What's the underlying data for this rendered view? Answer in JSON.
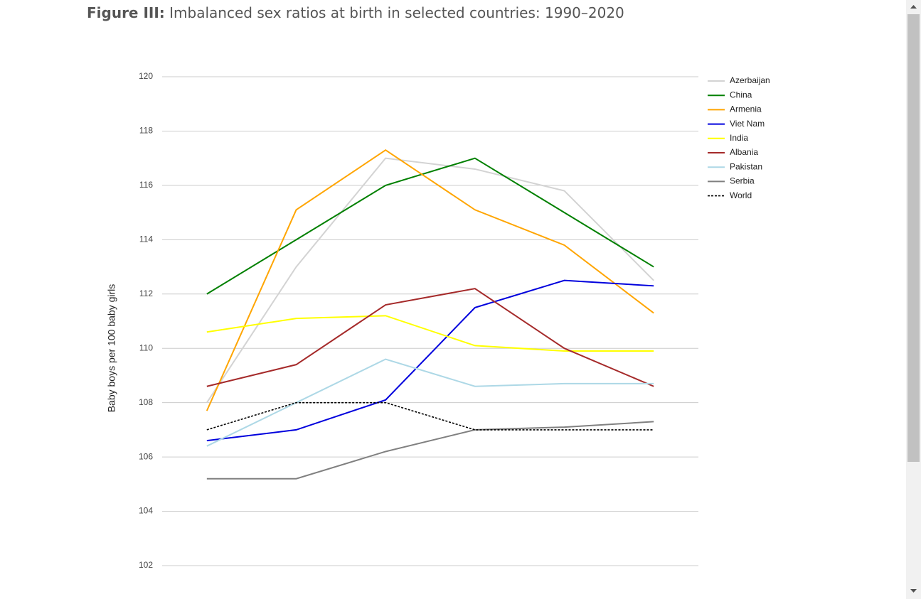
{
  "chart_data": {
    "type": "line",
    "title_label": "Figure III:",
    "title": "Imbalanced sex ratios at birth in selected countries: 1990–2020",
    "ylabel": "Baby boys per 100 baby girls",
    "categories": [
      null,
      null,
      null,
      null,
      null,
      null
    ],
    "ylim": [
      102,
      120
    ],
    "yticks": [
      102,
      104,
      106,
      108,
      110,
      112,
      114,
      116,
      118,
      120
    ],
    "grid": true,
    "legend": "right",
    "series": [
      {
        "name": "Azerbaijan",
        "color": "#d3d3d3",
        "values": [
          108.0,
          113.0,
          117.0,
          116.6,
          115.8,
          112.5
        ]
      },
      {
        "name": "China",
        "color": "#008000",
        "values": [
          112.0,
          114.0,
          116.0,
          117.0,
          115.0,
          113.0
        ]
      },
      {
        "name": "Armenia",
        "color": "#ffa500",
        "values": [
          107.7,
          115.1,
          117.3,
          115.1,
          113.8,
          111.3
        ]
      },
      {
        "name": "Viet Nam",
        "color": "#0000dd",
        "values": [
          106.6,
          107.0,
          108.1,
          111.5,
          112.5,
          112.3
        ]
      },
      {
        "name": "India",
        "color": "#ffff00",
        "values": [
          110.6,
          111.1,
          111.2,
          110.1,
          109.9,
          109.9
        ]
      },
      {
        "name": "Albania",
        "color": "#a52a2a",
        "values": [
          108.6,
          109.4,
          111.6,
          112.2,
          110.0,
          108.6
        ]
      },
      {
        "name": "Pakistan",
        "color": "#add8e6",
        "values": [
          106.4,
          108.0,
          109.6,
          108.6,
          108.7,
          108.7
        ]
      },
      {
        "name": "Serbia",
        "color": "#808080",
        "values": [
          105.2,
          105.2,
          106.2,
          107.0,
          107.1,
          107.3
        ]
      },
      {
        "name": "World",
        "color": "#000000",
        "dashed": true,
        "values": [
          107.0,
          108.0,
          108.0,
          107.0,
          107.0,
          107.0
        ]
      }
    ]
  }
}
